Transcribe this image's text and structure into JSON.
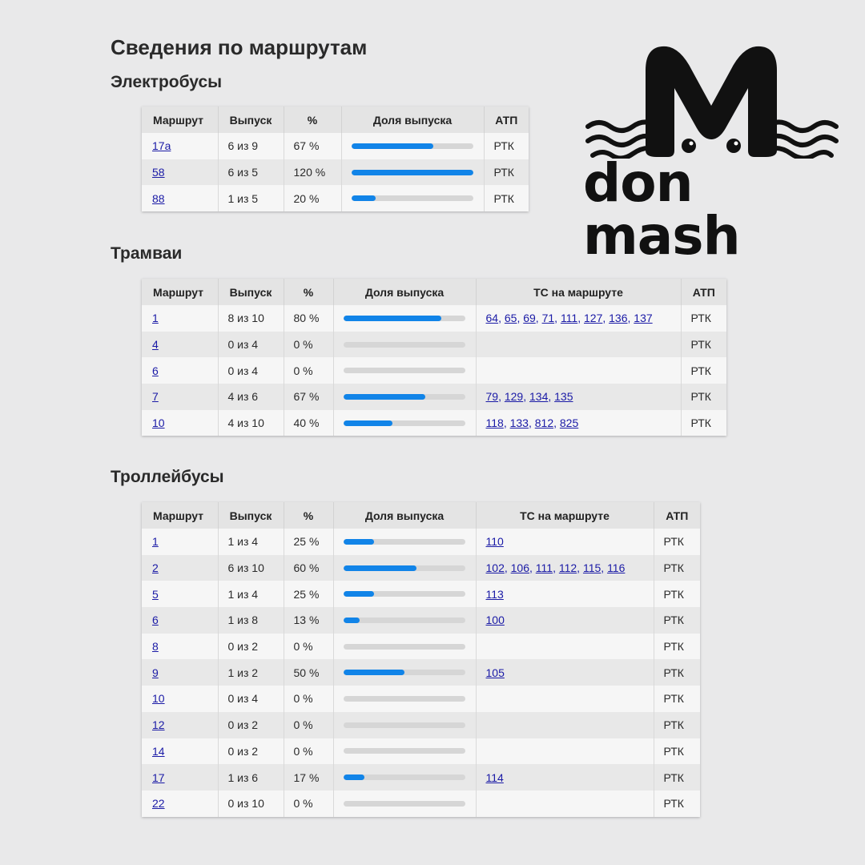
{
  "page_title": "Сведения по маршрутам",
  "logo": {
    "text": "don mash",
    "icon": "cat-m-logo-icon"
  },
  "colors": {
    "bar_fill": "#1184e8",
    "bar_track": "#d6d6d6",
    "link": "#1a1aa6"
  },
  "sections": {
    "ebus": {
      "title": "Электробусы",
      "headers": [
        "Маршрут",
        "Выпуск",
        "%",
        "Доля выпуска",
        "АТП"
      ],
      "rows": [
        {
          "route": "17а",
          "issued": "6 из 9",
          "pct": "67 %",
          "share": 0.67,
          "atp": "РТК"
        },
        {
          "route": "58",
          "issued": "6 из 5",
          "pct": "120 %",
          "share": 1.0,
          "atp": "РТК"
        },
        {
          "route": "88",
          "issued": "1 из 5",
          "pct": "20 %",
          "share": 0.2,
          "atp": "РТК"
        }
      ]
    },
    "tram": {
      "title": "Трамваи",
      "headers": [
        "Маршрут",
        "Выпуск",
        "%",
        "Доля выпуска",
        "ТС на маршруте",
        "АТП"
      ],
      "rows": [
        {
          "route": "1",
          "issued": "8 из 10",
          "pct": "80 %",
          "share": 0.8,
          "vehicles": [
            "64",
            "65",
            "69",
            "71",
            "111",
            "127",
            "136",
            "137"
          ],
          "atp": "РТК"
        },
        {
          "route": "4",
          "issued": "0 из 4",
          "pct": "0 %",
          "share": 0,
          "vehicles": [],
          "atp": "РТК"
        },
        {
          "route": "6",
          "issued": "0 из 4",
          "pct": "0 %",
          "share": 0,
          "vehicles": [],
          "atp": "РТК"
        },
        {
          "route": "7",
          "issued": "4 из 6",
          "pct": "67 %",
          "share": 0.67,
          "vehicles": [
            "79",
            "129",
            "134",
            "135"
          ],
          "atp": "РТК"
        },
        {
          "route": "10",
          "issued": "4 из 10",
          "pct": "40 %",
          "share": 0.4,
          "vehicles": [
            "118",
            "133",
            "812",
            "825"
          ],
          "atp": "РТК"
        }
      ]
    },
    "trolley": {
      "title": "Троллейбусы",
      "headers": [
        "Маршрут",
        "Выпуск",
        "%",
        "Доля выпуска",
        "ТС на маршруте",
        "АТП"
      ],
      "rows": [
        {
          "route": "1",
          "issued": "1 из 4",
          "pct": "25 %",
          "share": 0.25,
          "vehicles": [
            "110"
          ],
          "atp": "РТК"
        },
        {
          "route": "2",
          "issued": "6 из 10",
          "pct": "60 %",
          "share": 0.6,
          "vehicles": [
            "102",
            "106",
            "111",
            "112",
            "115",
            "116"
          ],
          "atp": "РТК"
        },
        {
          "route": "5",
          "issued": "1 из 4",
          "pct": "25 %",
          "share": 0.25,
          "vehicles": [
            "113"
          ],
          "atp": "РТК"
        },
        {
          "route": "6",
          "issued": "1 из 8",
          "pct": "13 %",
          "share": 0.13,
          "vehicles": [
            "100"
          ],
          "atp": "РТК"
        },
        {
          "route": "8",
          "issued": "0 из 2",
          "pct": "0 %",
          "share": 0,
          "vehicles": [],
          "atp": "РТК"
        },
        {
          "route": "9",
          "issued": "1 из 2",
          "pct": "50 %",
          "share": 0.5,
          "vehicles": [
            "105"
          ],
          "atp": "РТК"
        },
        {
          "route": "10",
          "issued": "0 из 4",
          "pct": "0 %",
          "share": 0,
          "vehicles": [],
          "atp": "РТК"
        },
        {
          "route": "12",
          "issued": "0 из 2",
          "pct": "0 %",
          "share": 0,
          "vehicles": [],
          "atp": "РТК"
        },
        {
          "route": "14",
          "issued": "0 из 2",
          "pct": "0 %",
          "share": 0,
          "vehicles": [],
          "atp": "РТК"
        },
        {
          "route": "17",
          "issued": "1 из 6",
          "pct": "17 %",
          "share": 0.17,
          "vehicles": [
            "114"
          ],
          "atp": "РТК"
        },
        {
          "route": "22",
          "issued": "0 из 10",
          "pct": "0 %",
          "share": 0,
          "vehicles": [],
          "atp": "РТК"
        }
      ]
    }
  }
}
